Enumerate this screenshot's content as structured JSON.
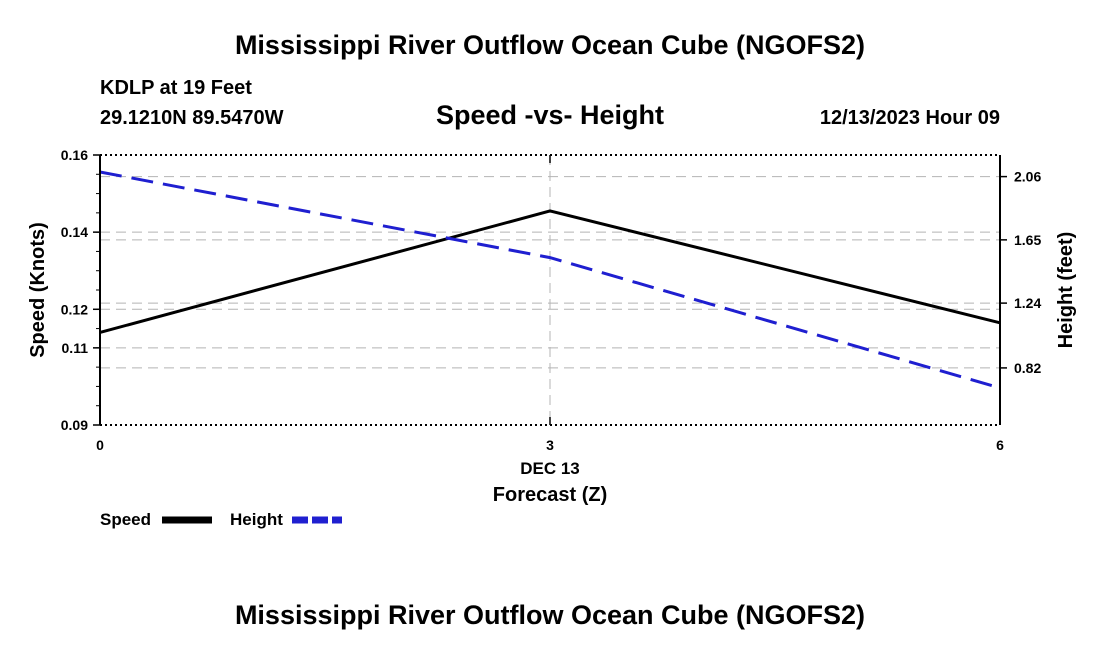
{
  "header": {
    "title": "Mississippi River Outflow Ocean Cube (NGOFS2)",
    "station": "KDLP at 19 Feet",
    "coords": "29.1210N  89.5470W",
    "subtitle": "Speed -vs- Height",
    "datetime": "12/13/2023 Hour 09"
  },
  "footer": {
    "title": "Mississippi River Outflow Ocean Cube (NGOFS2)"
  },
  "colors": {
    "speed": "#000000",
    "height": "#1f1fd0",
    "grid": "#b4b4b4"
  },
  "chart_data": {
    "type": "line",
    "title": "Speed -vs- Height",
    "x": [
      0,
      3,
      6
    ],
    "x_tick_labels": [
      "0",
      "3",
      "6"
    ],
    "x_date_label": "DEC 13",
    "xlabel": "Forecast (Z)",
    "xlim": [
      0,
      6
    ],
    "ylabel": "Speed (Knots)",
    "ylim": [
      0.09,
      0.16
    ],
    "y_ticks": [
      0.09,
      0.11,
      0.12,
      0.14,
      0.16
    ],
    "y_tick_labels": [
      "0.09",
      "0.11",
      "0.12",
      "0.14",
      "0.16"
    ],
    "y2label": "Height (feet)",
    "y2lim": [
      0.45,
      2.2
    ],
    "y2_ticks": [
      0.82,
      1.24,
      1.65,
      2.06
    ],
    "y2_tick_labels": [
      "0.82",
      "1.24",
      "1.65",
      "2.06"
    ],
    "grid": true,
    "legend_position": "bottom-left",
    "series": [
      {
        "name": "Speed",
        "axis": "left",
        "style": "solid",
        "values": [
          0.114,
          0.1455,
          0.1165
        ]
      },
      {
        "name": "Height",
        "axis": "right",
        "style": "dashed",
        "values": [
          2.09,
          1.535,
          0.69
        ]
      }
    ]
  }
}
